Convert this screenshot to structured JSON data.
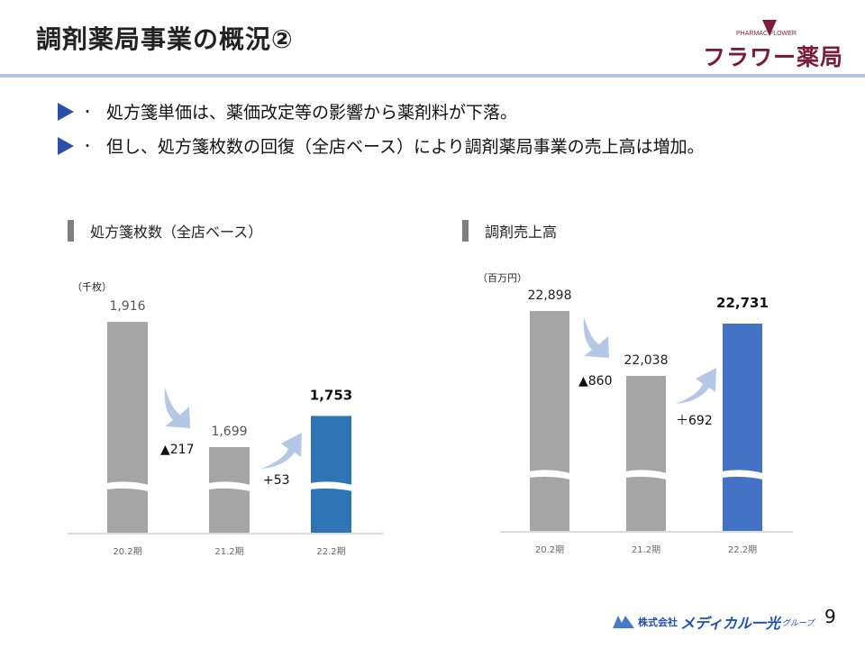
{
  "header": {
    "title": "調剤薬局事業の概況②"
  },
  "logo": {
    "sub": "PHARMAC  FLOWER",
    "main": "フラワー薬局",
    "color": "#7b1c3a"
  },
  "bullets": [
    "処方箋単価は、薬価改定等の影響から薬剤料が下落。",
    "但し、処方箋枚数の回復（全店ベース）により調剤薬局事業の売上高は増加。"
  ],
  "footer": {
    "company_prefix": "株式会社",
    "company_name": "メディカル一光",
    "company_suffix": "グループ",
    "page_number": "9"
  },
  "chart_data": [
    {
      "type": "bar",
      "title": "処方箋枚数（全店ベース）",
      "unit": "（千枚）",
      "categories": [
        "20.2期",
        "21.2期",
        "22.2期"
      ],
      "values": [
        1916,
        1699,
        1753
      ],
      "value_labels": [
        "1,916",
        "1,699",
        "1,753"
      ],
      "changes": [
        {
          "label": "▲217",
          "value": -217
        },
        {
          "label": "+53",
          "value": 53
        }
      ],
      "colors": [
        "#a5a5a5",
        "#a5a5a5",
        "#2e75b6"
      ],
      "axis_break": true,
      "highlight": "22.2期"
    },
    {
      "type": "bar",
      "title": "調剤売上高",
      "unit": "（百万円）",
      "categories": [
        "20.2期",
        "21.2期",
        "22.2期"
      ],
      "values": [
        22898,
        22038,
        22731
      ],
      "value_labels": [
        "22,898",
        "22,038",
        "22,731"
      ],
      "changes": [
        {
          "label": "▲860",
          "value": -860
        },
        {
          "label": "＋692",
          "value": 692
        }
      ],
      "colors": [
        "#a5a5a5",
        "#a5a5a5",
        "#4472c4"
      ],
      "axis_break": true,
      "highlight": "22.2期"
    }
  ]
}
